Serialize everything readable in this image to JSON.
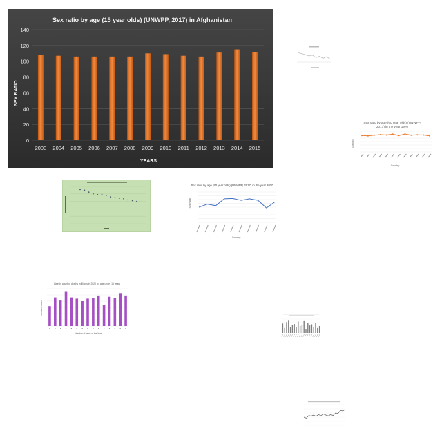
{
  "main_chart": {
    "title": "Sex ratio by age (15 year olds) (UNWPP, 2017) in Afghanistan",
    "xlabel": "YEARS",
    "ylabel": "SEX RATIO",
    "bar_color": "#ed7d31",
    "background": "#3b3b3b"
  },
  "chart_1970": {
    "title": "Sex ratio by age (60 year olds) (UNWPP, 2017) in the year 1970",
    "xlabel": "Country",
    "ylabel": "Sex ratio",
    "line_color": "#ed7d31"
  },
  "chart_2010": {
    "title": "Sex ratio by age (90 year olds) (UNWPP, 2017) in the year 2010",
    "xlabel": "Country",
    "ylabel": "Sex Ratio",
    "line_color": "#4472c4"
  },
  "chart_green": {
    "background": "#c6e0b4"
  },
  "chart_purple": {
    "title": "Weekly count of deaths in Illinois in 2020 for age under 15 years",
    "xlabel": "Number of week of the Year",
    "ylabel": "number of deaths",
    "bar_color": "#a64ec4"
  },
  "chart_data": [
    {
      "type": "bar",
      "title": "Sex ratio by age (15 year olds) (UNWPP, 2017) in Afghanistan",
      "xlabel": "YEARS",
      "ylabel": "SEX RATIO",
      "categories": [
        "2003",
        "2004",
        "2005",
        "2006",
        "2007",
        "2008",
        "2009",
        "2010",
        "2011",
        "2012",
        "2013",
        "2014",
        "2015"
      ],
      "values": [
        108,
        107,
        106,
        106,
        106,
        106,
        110,
        109,
        107,
        106,
        111,
        115,
        112
      ],
      "yticks": [
        "0",
        "20",
        "40",
        "60",
        "80",
        "100",
        "120",
        "140"
      ],
      "ylim": [
        0,
        140
      ],
      "grid": true
    },
    {
      "type": "line",
      "title": "Sex ratio by age (60 year olds) (UNWPP, 2017) in the year 1970",
      "xlabel": "Country",
      "ylabel": "Sex ratio",
      "values": [
        95,
        93,
        97,
        100,
        98,
        103,
        95,
        104,
        97,
        99,
        98,
        93
      ],
      "ylim": [
        0,
        120
      ]
    },
    {
      "type": "line",
      "title": "Sex ratio by age (90 year olds) (UNWPP, 2017) in the year 2010",
      "xlabel": "Country",
      "ylabel": "Sex Ratio",
      "values": [
        40,
        48,
        44,
        62,
        63,
        58,
        62,
        58,
        38,
        54
      ],
      "ylim": [
        0,
        80
      ]
    },
    {
      "type": "scatter",
      "values": [
        92,
        90,
        85,
        80,
        78,
        79,
        76,
        72,
        70,
        68,
        67,
        64,
        62,
        60
      ],
      "ylim": [
        0,
        100
      ]
    },
    {
      "type": "bar",
      "title": "Weekly count of deaths in Illinois in 2020 for age under 15 years",
      "xlabel": "Number of week of the Year",
      "ylabel": "number of deaths",
      "values": [
        32,
        46,
        41,
        55,
        46,
        44,
        40,
        44,
        45,
        49,
        34,
        47,
        45,
        53,
        49
      ],
      "ylim": [
        0,
        60
      ]
    },
    {
      "type": "bar",
      "values": [
        48,
        25,
        55,
        62,
        30,
        40,
        45,
        28,
        58,
        35,
        42,
        60,
        20,
        50,
        38,
        44,
        30,
        52,
        25,
        35
      ],
      "ylim": [
        0,
        70
      ]
    },
    {
      "type": "line",
      "values": [
        40,
        35,
        48,
        45,
        50,
        44,
        52,
        47,
        55,
        50,
        46,
        52,
        48,
        60,
        58,
        72,
        70,
        78
      ],
      "ylim": [
        0,
        100
      ]
    },
    {
      "type": "line",
      "values": [
        60,
        55,
        48,
        40,
        45,
        30,
        38,
        25,
        35,
        20
      ],
      "ylim": [
        0,
        80
      ]
    }
  ]
}
